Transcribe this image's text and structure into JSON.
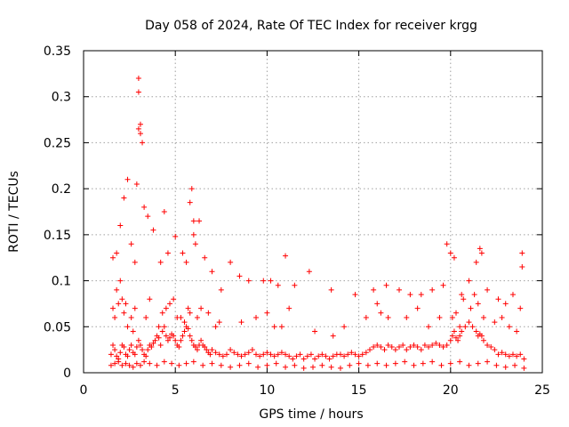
{
  "chart_data": {
    "type": "scatter",
    "title": "Day 058 of 2024, Rate Of TEC Index for receiver krgg",
    "xlabel": "GPS time / hours",
    "ylabel": "ROTI / TECUs",
    "xlim": [
      0,
      25
    ],
    "ylim": [
      0,
      0.35
    ],
    "xticks": [
      "0",
      "5",
      "10",
      "15",
      "20",
      "25"
    ],
    "xtick_values": [
      0,
      5,
      10,
      15,
      20,
      25
    ],
    "yticks": [
      "0",
      "0.05",
      "0.1",
      "0.15",
      "0.2",
      "0.25",
      "0.3",
      "0.35"
    ],
    "ytick_values": [
      0,
      0.05,
      0.1,
      0.15,
      0.2,
      0.25,
      0.3,
      0.35
    ],
    "grid": true,
    "marker": "+",
    "color": "#ff0000",
    "series": [
      {
        "x": [
          1.5,
          1.6,
          1.7,
          1.8,
          1.9,
          2.0,
          2.1,
          2.2,
          2.3,
          2.4,
          2.5,
          2.6,
          2.7,
          2.8,
          2.9,
          3.0,
          3.1,
          3.2,
          3.3,
          3.4,
          3.5,
          3.6,
          3.7,
          3.8,
          3.9,
          4.0,
          4.1,
          4.2,
          4.3,
          4.4,
          4.5,
          4.6,
          4.7,
          4.8,
          4.9,
          5.0,
          5.1,
          5.2,
          5.3,
          5.4,
          5.5,
          5.6,
          5.7,
          5.8,
          5.9,
          6.0,
          6.1,
          6.2,
          6.3,
          6.4,
          6.5,
          6.6,
          6.7,
          6.8,
          6.9,
          7.0,
          7.2,
          7.4,
          7.6,
          7.8,
          8.0,
          8.2,
          8.4,
          8.6,
          8.8,
          9.0,
          9.2,
          9.4,
          9.6,
          9.8,
          10.0,
          10.2,
          10.4,
          10.6,
          10.8,
          11.0,
          11.2,
          11.4,
          11.6,
          11.8,
          12.0,
          12.2,
          12.4,
          12.6,
          12.8,
          13.0,
          13.2,
          13.4,
          13.6,
          13.8,
          14.0,
          14.2,
          14.4,
          14.6,
          14.8,
          15.0,
          15.2,
          15.4,
          15.6,
          15.8,
          16.0,
          16.2,
          16.4,
          16.6,
          16.8,
          17.0,
          17.2,
          17.4,
          17.6,
          17.8,
          18.0,
          18.2,
          18.4,
          18.6,
          18.8,
          19.0,
          19.2,
          19.4,
          19.6,
          19.8,
          20.0,
          20.1,
          20.2,
          20.3,
          20.4,
          20.5,
          20.6,
          20.8,
          21.0,
          21.2,
          21.4,
          21.5,
          21.6,
          21.7,
          21.8,
          22.0,
          22.2,
          22.4,
          22.6,
          22.8,
          23.0,
          23.2,
          23.4,
          23.6,
          23.8,
          24.0,
          1.5,
          1.7,
          1.9,
          2.1,
          2.3,
          2.5,
          2.7,
          2.9,
          3.1,
          3.3,
          3.6,
          4.0,
          4.4,
          4.8,
          5.2,
          5.6,
          6.0,
          6.5,
          7.0,
          7.5,
          8.0,
          8.5,
          9.0,
          9.5,
          10.0,
          10.5,
          11.0,
          11.5,
          12.0,
          12.5,
          13.0,
          13.5,
          14.0,
          14.5,
          15.0,
          15.5,
          16.0,
          16.5,
          17.0,
          17.5,
          18.0,
          18.5,
          19.0,
          19.5,
          20.0,
          20.5,
          21.0,
          21.5,
          22.0,
          22.5,
          23.0,
          23.5,
          24.0,
          1.6,
          1.8,
          2.0,
          2.2,
          2.4,
          2.6,
          2.8,
          2.9,
          3.0,
          3.0,
          3.0,
          3.1,
          3.1,
          3.2,
          3.3,
          3.5,
          3.8,
          4.2,
          4.4,
          4.6,
          5.0,
          5.4,
          5.6,
          5.8,
          5.9,
          6.0,
          6.0,
          6.1,
          6.3,
          6.6,
          7.0,
          7.5,
          8.0,
          8.5,
          9.0,
          9.8,
          10.2,
          10.6,
          11.0,
          11.5,
          12.3,
          13.5,
          14.8,
          15.8,
          16.5,
          17.2,
          17.8,
          18.4,
          19.0,
          19.6,
          19.8,
          20.0,
          20.2,
          20.6,
          21.0,
          21.4,
          21.6,
          21.7,
          22.0,
          22.6,
          23.0,
          23.4,
          23.8,
          23.9,
          23.9,
          1.6,
          1.7,
          1.8,
          1.9,
          2.0,
          2.1,
          2.2,
          2.3,
          2.4,
          2.6,
          2.7,
          2.8,
          3.4,
          3.6,
          4.1,
          4.3,
          4.5,
          4.7,
          4.9,
          5.1,
          5.3,
          5.5,
          5.7,
          5.8,
          6.2,
          6.4,
          6.8,
          7.2,
          7.4,
          8.6,
          9.4,
          10.0,
          10.4,
          10.8,
          11.2,
          12.6,
          13.6,
          14.2,
          15.4,
          16.0,
          16.2,
          16.6,
          17.6,
          18.2,
          18.8,
          19.4,
          20.1,
          20.3,
          20.5,
          20.7,
          21.1,
          21.3,
          21.5,
          21.8,
          22.4,
          22.8,
          23.2,
          23.6
        ],
        "y": [
          0.02,
          0.03,
          0.025,
          0.018,
          0.015,
          0.022,
          0.03,
          0.028,
          0.02,
          0.018,
          0.025,
          0.03,
          0.022,
          0.02,
          0.028,
          0.035,
          0.03,
          0.025,
          0.02,
          0.018,
          0.025,
          0.03,
          0.028,
          0.032,
          0.035,
          0.04,
          0.038,
          0.03,
          0.045,
          0.05,
          0.04,
          0.035,
          0.038,
          0.042,
          0.04,
          0.035,
          0.03,
          0.028,
          0.035,
          0.04,
          0.045,
          0.05,
          0.048,
          0.04,
          0.035,
          0.03,
          0.028,
          0.025,
          0.03,
          0.035,
          0.03,
          0.028,
          0.025,
          0.022,
          0.02,
          0.025,
          0.022,
          0.02,
          0.018,
          0.02,
          0.025,
          0.022,
          0.02,
          0.018,
          0.02,
          0.022,
          0.025,
          0.02,
          0.018,
          0.02,
          0.022,
          0.02,
          0.018,
          0.02,
          0.022,
          0.02,
          0.018,
          0.015,
          0.018,
          0.02,
          0.015,
          0.018,
          0.02,
          0.015,
          0.018,
          0.02,
          0.018,
          0.015,
          0.018,
          0.02,
          0.02,
          0.018,
          0.02,
          0.022,
          0.02,
          0.018,
          0.02,
          0.022,
          0.025,
          0.028,
          0.03,
          0.028,
          0.025,
          0.03,
          0.028,
          0.025,
          0.028,
          0.03,
          0.025,
          0.028,
          0.03,
          0.028,
          0.025,
          0.03,
          0.028,
          0.03,
          0.032,
          0.03,
          0.028,
          0.03,
          0.035,
          0.04,
          0.045,
          0.038,
          0.035,
          0.04,
          0.045,
          0.05,
          0.055,
          0.05,
          0.045,
          0.04,
          0.042,
          0.04,
          0.035,
          0.03,
          0.028,
          0.025,
          0.02,
          0.022,
          0.02,
          0.018,
          0.02,
          0.018,
          0.02,
          0.015,
          0.008,
          0.01,
          0.012,
          0.008,
          0.01,
          0.008,
          0.006,
          0.01,
          0.008,
          0.012,
          0.01,
          0.008,
          0.012,
          0.01,
          0.008,
          0.01,
          0.012,
          0.008,
          0.01,
          0.008,
          0.006,
          0.008,
          0.01,
          0.006,
          0.008,
          0.01,
          0.006,
          0.008,
          0.005,
          0.006,
          0.008,
          0.006,
          0.005,
          0.008,
          0.01,
          0.008,
          0.01,
          0.008,
          0.01,
          0.012,
          0.008,
          0.01,
          0.012,
          0.008,
          0.01,
          0.012,
          0.008,
          0.01,
          0.012,
          0.008,
          0.006,
          0.008,
          0.005,
          0.125,
          0.13,
          0.16,
          0.19,
          0.21,
          0.14,
          0.12,
          0.205,
          0.32,
          0.305,
          0.265,
          0.27,
          0.26,
          0.25,
          0.18,
          0.17,
          0.155,
          0.12,
          0.175,
          0.13,
          0.148,
          0.13,
          0.12,
          0.185,
          0.2,
          0.165,
          0.15,
          0.14,
          0.165,
          0.125,
          0.11,
          0.09,
          0.12,
          0.105,
          0.1,
          0.1,
          0.1,
          0.095,
          0.127,
          0.095,
          0.11,
          0.09,
          0.085,
          0.09,
          0.095,
          0.09,
          0.085,
          0.085,
          0.09,
          0.095,
          0.14,
          0.13,
          0.125,
          0.085,
          0.1,
          0.12,
          0.135,
          0.13,
          0.09,
          0.08,
          0.075,
          0.085,
          0.07,
          0.115,
          0.13,
          0.07,
          0.06,
          0.09,
          0.075,
          0.1,
          0.08,
          0.065,
          0.075,
          0.05,
          0.06,
          0.045,
          0.07,
          0.06,
          0.08,
          0.05,
          0.065,
          0.07,
          0.075,
          0.08,
          0.06,
          0.06,
          0.055,
          0.07,
          0.065,
          0.06,
          0.07,
          0.065,
          0.05,
          0.055,
          0.055,
          0.06,
          0.065,
          0.05,
          0.05,
          0.07,
          0.045,
          0.04,
          0.05,
          0.06,
          0.075,
          0.065,
          0.06,
          0.06,
          0.07,
          0.05,
          0.06,
          0.06,
          0.065,
          0.05,
          0.08,
          0.07,
          0.085,
          0.075,
          0.06,
          0.055,
          0.06,
          0.05,
          0.045
        ]
      }
    ]
  }
}
